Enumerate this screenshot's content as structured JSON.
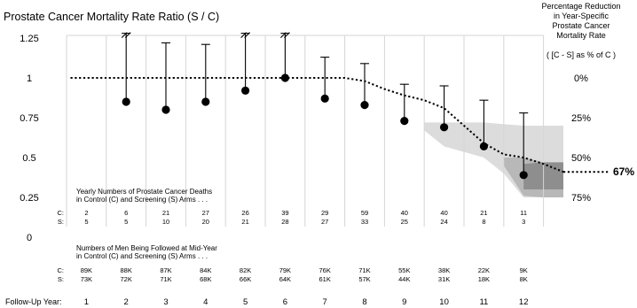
{
  "chart_data": {
    "type": "scatter",
    "title": "Prostate Cancer Mortality Rate Ratio (S / C)",
    "xlabel": "Follow-Up Year:",
    "ylim": [
      0,
      1.25
    ],
    "y_ticks": [
      "1.25",
      "1",
      "0.75",
      "0.5",
      "0.25",
      "0"
    ],
    "x": [
      1,
      2,
      3,
      4,
      5,
      6,
      7,
      8,
      9,
      10,
      11,
      12
    ],
    "x_tick_labels": [
      "1",
      "2",
      "3",
      "4",
      "5",
      "6",
      "7",
      "8",
      "9",
      "10",
      "11",
      "12"
    ],
    "series": [
      {
        "name": "",
        "values": [
          null,
          0.85,
          0.8,
          0.85,
          0.92,
          1.0,
          0.87,
          0.83,
          0.73,
          0.69,
          0.57,
          0.39
        ],
        "upper_ci": [
          null,
          1.28,
          1.22,
          1.21,
          1.28,
          1.28,
          1.13,
          1.09,
          0.96,
          0.95,
          0.86,
          0.78
        ],
        "ci_truncated": [
          false,
          true,
          false,
          false,
          true,
          true,
          false,
          false,
          false,
          false,
          false,
          false
        ]
      }
    ],
    "trend_line": {
      "x": [
        0.1,
        7,
        7.5,
        8,
        8.5,
        9,
        9.5,
        10,
        10.5,
        11,
        11.5,
        12,
        12.5
      ],
      "y": [
        1.0,
        1.0,
        0.98,
        0.93,
        0.89,
        0.86,
        0.81,
        0.7,
        0.59,
        0.52,
        0.5,
        0.46,
        0.41
      ],
      "end_label": "67%"
    },
    "bands": {
      "outer": {
        "x": [
          9,
          10.5,
          11,
          11.5,
          12,
          12.5,
          12.5,
          12,
          11.5,
          11,
          10.5,
          9.5,
          9
        ],
        "y": [
          0.72,
          0.72,
          0.71,
          0.7,
          0.7,
          0.7,
          0.25,
          0.25,
          0.25,
          0.4,
          0.5,
          0.57,
          0.67
        ]
      },
      "middle": {
        "x": [
          11,
          11.5,
          12,
          12.5,
          12.5,
          12,
          11.5,
          11
        ],
        "y": [
          0.5,
          0.5,
          0.47,
          0.46,
          0.25,
          0.25,
          0.26,
          0.45
        ]
      },
      "inner": {
        "x": [
          11.5,
          12,
          12.5,
          12.5,
          11.5
        ],
        "y": [
          0.46,
          0.47,
          0.47,
          0.3,
          0.3
        ]
      }
    },
    "right_axis": {
      "title_lines": [
        "Percentage Reduction",
        "in Year-Specific",
        "Prostate Cancer",
        "Mortality Rate"
      ],
      "subtitle": "( [C - S] as % of C )",
      "ticks": [
        {
          "label": "0%",
          "at": 1.0
        },
        {
          "label": "25%",
          "at": 0.75
        },
        {
          "label": "50%",
          "at": 0.5
        },
        {
          "label": "75%",
          "at": 0.25
        }
      ]
    },
    "deaths_table": {
      "caption_lines": [
        "Yearly Numbers of Prostate Cancer Deaths",
        "in Control (C) and Screening (S) Arms . . ."
      ],
      "rows": [
        {
          "label": "C:",
          "values": [
            "2",
            "6",
            "21",
            "27",
            "26",
            "39",
            "29",
            "59",
            "40",
            "40",
            "21",
            "11"
          ]
        },
        {
          "label": "S:",
          "values": [
            "5",
            "5",
            "10",
            "20",
            "21",
            "28",
            "27",
            "33",
            "25",
            "24",
            "8",
            "3"
          ]
        }
      ]
    },
    "followed_table": {
      "caption_lines": [
        "Numbers of Men Being Followed at Mid-Year",
        "in Control (C) and Screening (S) Arms . . ."
      ],
      "rows": [
        {
          "label": "C:",
          "values": [
            "89K",
            "88K",
            "87K",
            "84K",
            "82K",
            "79K",
            "76K",
            "71K",
            "55K",
            "38K",
            "22K",
            "9K"
          ]
        },
        {
          "label": "S:",
          "values": [
            "73K",
            "72K",
            "71K",
            "68K",
            "66K",
            "64K",
            "61K",
            "57K",
            "44K",
            "31K",
            "18K",
            "8K"
          ]
        }
      ]
    },
    "colors": {
      "band_outer": "#dcdcdc",
      "band_middle": "#b8b8b8",
      "band_inner": "#8e8e8e",
      "grid": "#d6d6d6",
      "ink": "#000000"
    }
  }
}
